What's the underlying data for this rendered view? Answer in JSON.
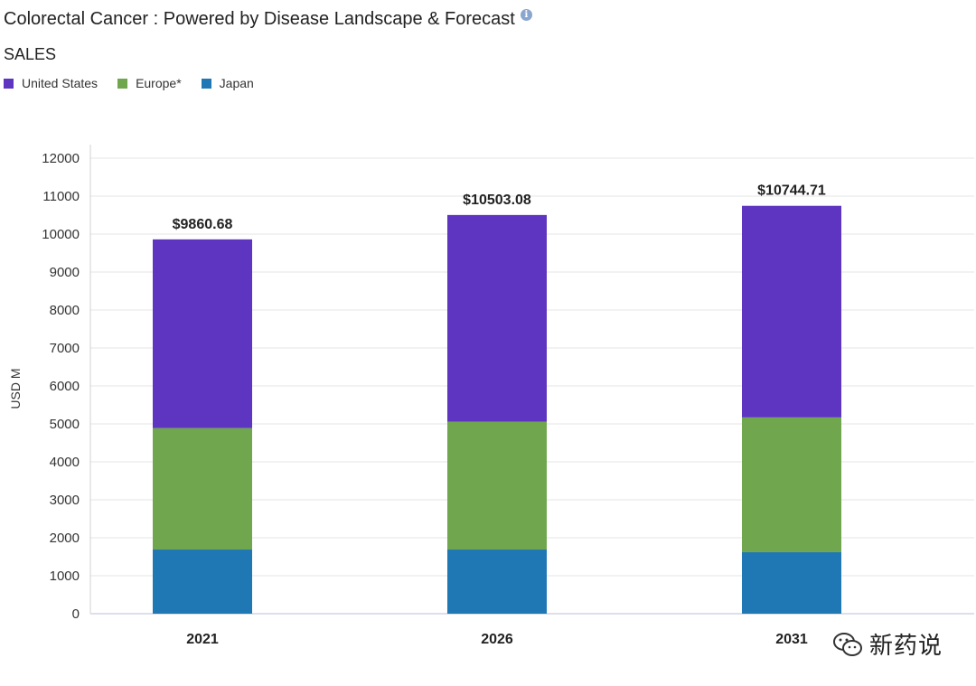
{
  "header": {
    "title": "Colorectal Cancer : Powered by Disease Landscape & Forecast",
    "info_icon": "info-icon",
    "subtitle": "SALES"
  },
  "watermark": {
    "text": "新药说",
    "icon": "wechat-icon"
  },
  "chart_data": {
    "type": "bar",
    "stacked": true,
    "categories": [
      "2021",
      "2026",
      "2031"
    ],
    "series": [
      {
        "name": "Japan",
        "color": "#1f77b4",
        "values": [
          1690,
          1690,
          1620
        ]
      },
      {
        "name": "Europe*",
        "color": "#70a64e",
        "values": [
          3200,
          3370,
          3550
        ]
      },
      {
        "name": "United States",
        "color": "#5e35c0",
        "values": [
          4970.68,
          5443.08,
          5574.71
        ]
      }
    ],
    "legend_order": [
      "United States",
      "Europe*",
      "Japan"
    ],
    "totals_labels": [
      "$9860.68",
      "$10503.08",
      "$10744.71"
    ],
    "ylabel": "USD M",
    "ylim": [
      0,
      12000
    ],
    "yticks": [
      "0",
      "1000",
      "2000",
      "3000",
      "4000",
      "5000",
      "6000",
      "7000",
      "8000",
      "9000",
      "10000",
      "11000",
      "12000"
    ],
    "grid": true,
    "legend_position": "top-left"
  }
}
